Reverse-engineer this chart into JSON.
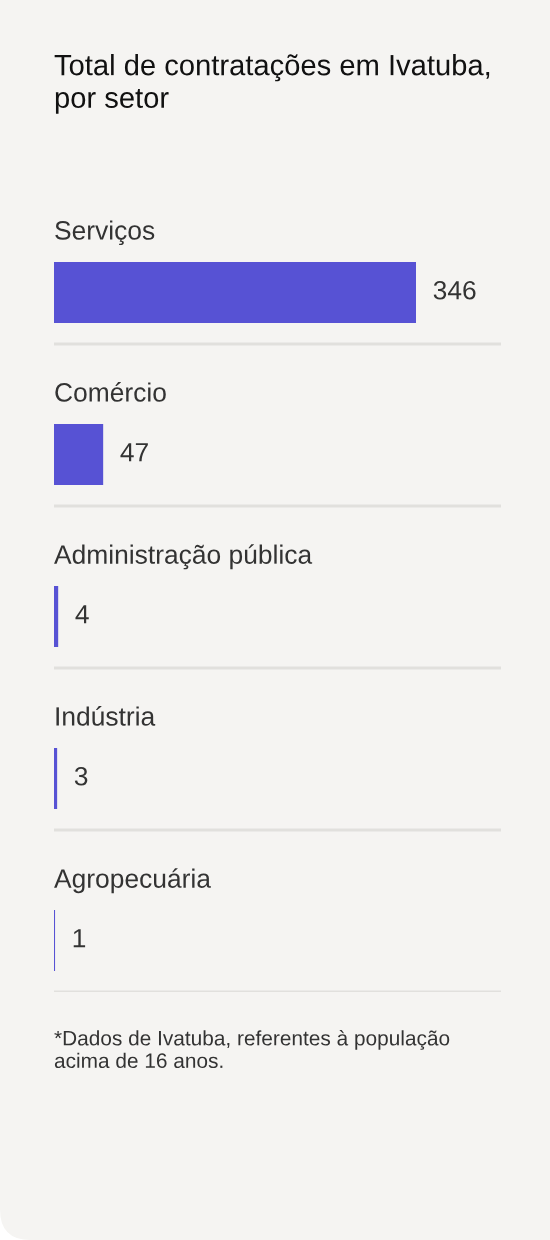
{
  "chart_data": {
    "type": "bar",
    "orientation": "horizontal",
    "title": "Total de contratações em Ivatuba, por setor",
    "categories": [
      "Serviços",
      "Comércio",
      "Administração pública",
      "Indústria",
      "Agropecuária"
    ],
    "values": [
      346,
      47,
      4,
      3,
      1
    ],
    "color": "#5752d4",
    "data_labels": true,
    "tick_labels": "y",
    "annotations": [
      "*Dados de Ivatuba, referentes à população acima de 16 anos."
    ]
  }
}
